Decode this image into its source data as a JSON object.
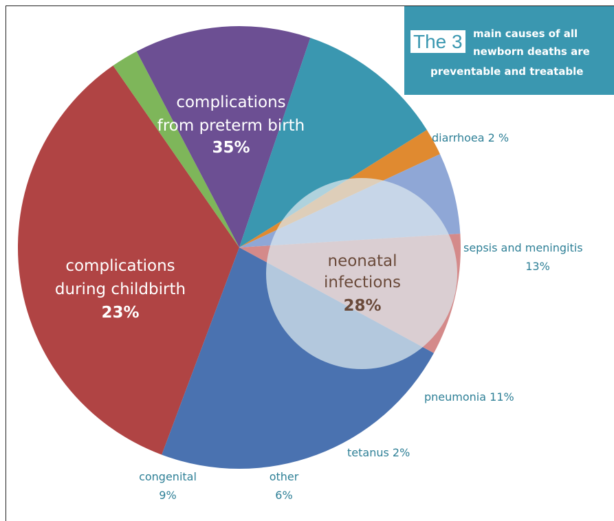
{
  "callout": {
    "highlight": "The 3",
    "line1": "main causes of all",
    "line2": "newborn deaths are",
    "line3": "preventable and treatable"
  },
  "colors": {
    "preterm": "#b04444",
    "childbirth": "#4a72b0",
    "congenital": "#d48a8a",
    "other": "#8fa7d6",
    "tetanus": "#e08a30",
    "pneumonia": "#3a97b0",
    "sepsis": "#6c4f93",
    "diarrhoea": "#7eb65a",
    "label_teal": "#2d7f96",
    "overlay": "#dce9ee"
  },
  "chart_data": {
    "type": "pie",
    "title": "",
    "slices": [
      {
        "id": "preterm",
        "label_lines": [
          "complications",
          "from preterm birth"
        ],
        "value_label": "35%",
        "value": 35
      },
      {
        "id": "diarrhoea",
        "label_lines": [
          "diarrhoea 2 %"
        ],
        "value_label": "",
        "value": 2
      },
      {
        "id": "sepsis",
        "label_lines": [
          "sepsis and meningitis"
        ],
        "value_label": "13%",
        "value": 13
      },
      {
        "id": "pneumonia",
        "label_lines": [
          "pneumonia 11%"
        ],
        "value_label": "",
        "value": 11
      },
      {
        "id": "tetanus",
        "label_lines": [
          "tetanus 2%"
        ],
        "value_label": "",
        "value": 2
      },
      {
        "id": "other",
        "label_lines": [
          "other"
        ],
        "value_label": "6%",
        "value": 6
      },
      {
        "id": "congenital",
        "label_lines": [
          "congenital"
        ],
        "value_label": "9%",
        "value": 9
      },
      {
        "id": "childbirth",
        "label_lines": [
          "complications",
          "during childbirth"
        ],
        "value_label": "23%",
        "value": 23
      }
    ],
    "group_annotation": {
      "label_lines": [
        "neonatal",
        "infections"
      ],
      "value_label": "28%",
      "value": 28,
      "members": [
        "diarrhoea",
        "sepsis",
        "pneumonia",
        "tetanus"
      ]
    }
  }
}
